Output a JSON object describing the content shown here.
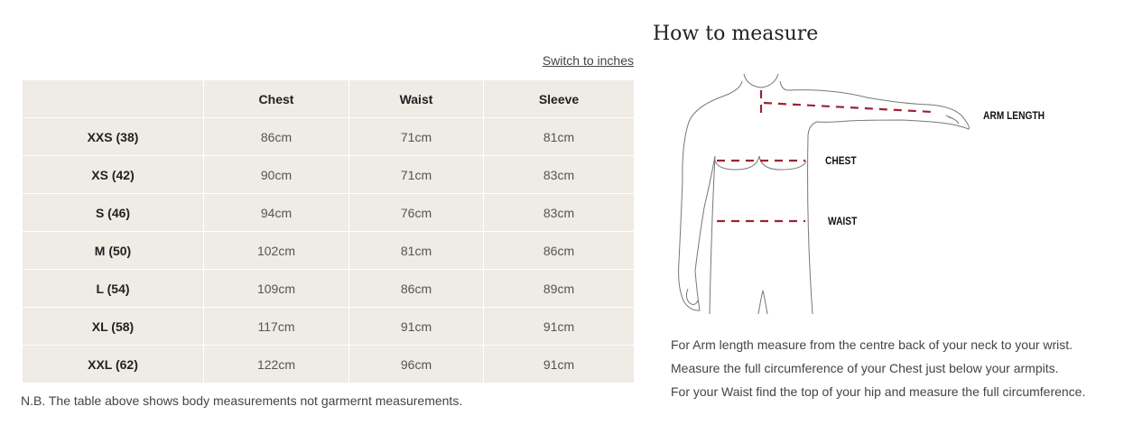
{
  "switch_label": "Switch to inches",
  "table": {
    "headers": [
      "",
      "Chest",
      "Waist",
      "Sleeve"
    ],
    "rows": [
      [
        "XXS (38)",
        "86cm",
        "71cm",
        "81cm"
      ],
      [
        "XS (42)",
        "90cm",
        "71cm",
        "83cm"
      ],
      [
        "S (46)",
        "94cm",
        "76cm",
        "83cm"
      ],
      [
        "M (50)",
        "102cm",
        "81cm",
        "86cm"
      ],
      [
        "L (54)",
        "109cm",
        "86cm",
        "89cm"
      ],
      [
        "XL (58)",
        "117cm",
        "91cm",
        "91cm"
      ],
      [
        "XXL (62)",
        "122cm",
        "96cm",
        "91cm"
      ]
    ]
  },
  "note": "N.B. The table above shows body measurements not garmernt measurements.",
  "how_to": {
    "title": "How to measure",
    "labels": {
      "arm": "ARM LENGTH",
      "chest": "CHEST",
      "waist": "WAIST"
    },
    "instructions": [
      "For Arm length measure from the centre back of your neck to your wrist.",
      "Measure the full circumference of your Chest just below your armpits.",
      "For your Waist find the top of your hip and measure the full circumference."
    ]
  },
  "colors": {
    "table_bg": "#efebe5",
    "dash": "#9b2335"
  }
}
